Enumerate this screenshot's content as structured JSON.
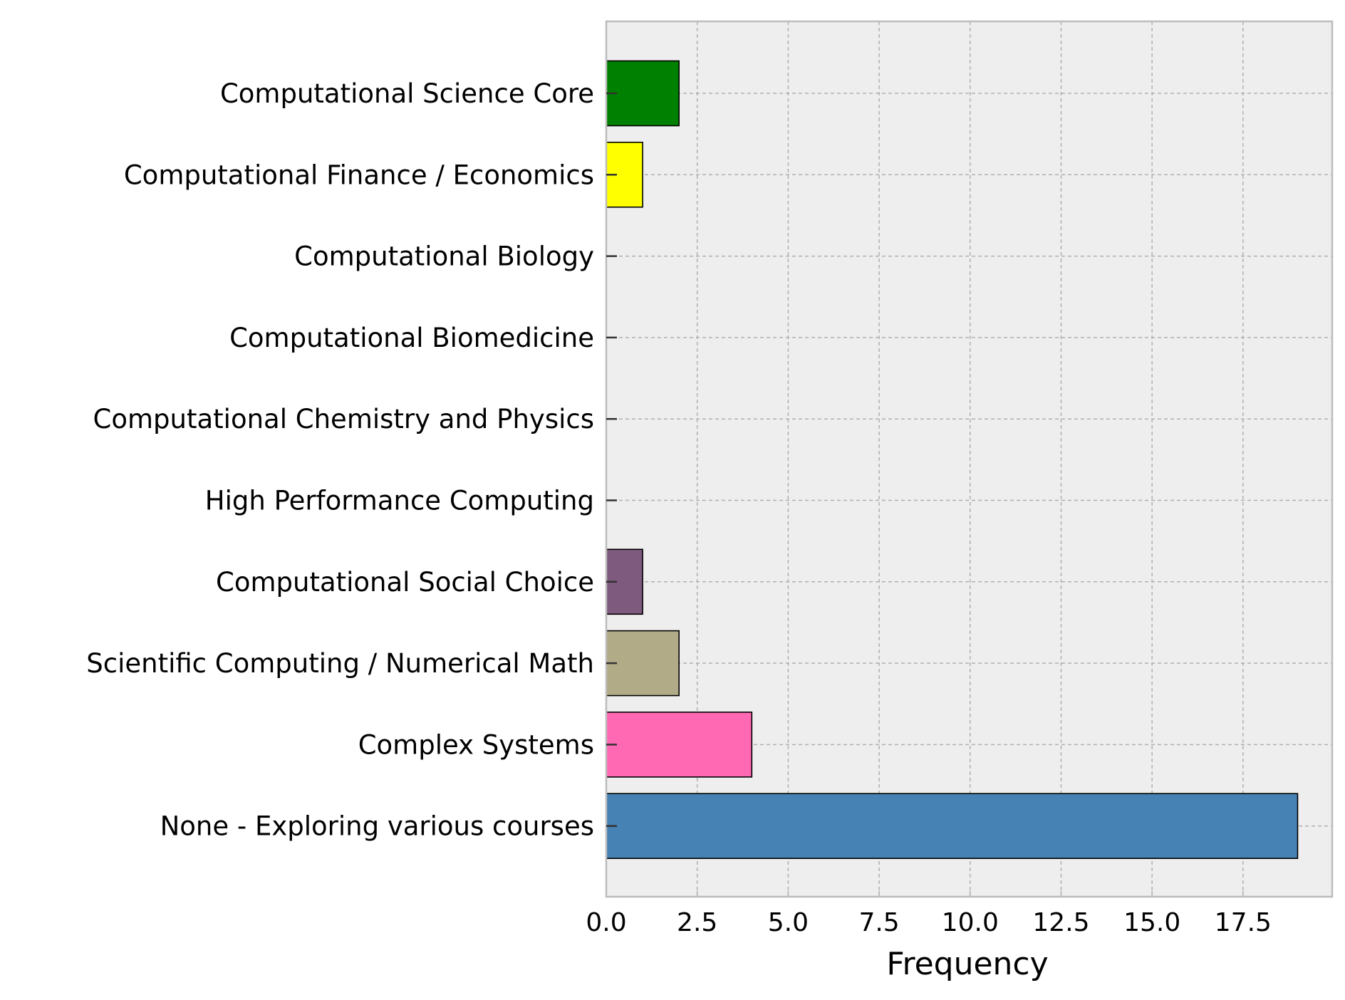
{
  "chart_data": {
    "type": "bar",
    "orientation": "horizontal",
    "title": "",
    "xlabel": "Frequency",
    "ylabel": "",
    "categories": [
      "Computational Science Core",
      "Computational Finance / Economics",
      "Computational Biology",
      "Computational Biomedicine",
      "Computational Chemistry and Physics",
      "High Performance Computing",
      "Computational Social Choice",
      "Scientific Computing / Numerical Math",
      "Complex Systems",
      "None - Exploring various courses"
    ],
    "values": [
      2,
      1,
      0,
      0,
      0,
      0,
      1,
      2,
      4,
      19
    ],
    "colors": [
      "#008000",
      "#ffff00",
      "#ff0000",
      "#0000ff",
      "#ff8c00",
      "#00ced1",
      "#7f5a7f",
      "#b2ab88",
      "#ff69b4",
      "#4682b4"
    ],
    "x_ticks": [
      "0.0",
      "2.5",
      "5.0",
      "7.5",
      "10.0",
      "12.5",
      "15.0",
      "17.5"
    ],
    "x_tick_values": [
      0,
      2.5,
      5,
      7.5,
      10,
      12.5,
      15,
      17.5
    ],
    "xlim": [
      0,
      19.95
    ],
    "grid": true,
    "legend": "none",
    "style": {
      "plot_background": "#eeeeee",
      "grid_color": "#b0b0b0",
      "spine_color": "#bcbcbc",
      "bar_edge_color": "#000000"
    }
  }
}
